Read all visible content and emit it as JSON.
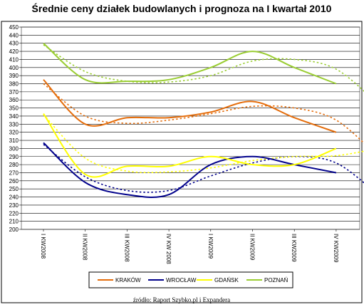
{
  "chart_data": {
    "type": "line",
    "title": "Średnie ceny działek budowlanych i prognoza na I kwartał 2010",
    "source": "źródło: Raport Szybko.pl i Expandera",
    "x": [
      "I KW2008",
      "II KW2008",
      "III KW2008",
      "IV KW 2008",
      "I KW2009",
      "II KW2009",
      "III KW2009",
      "IV KW2009"
    ],
    "ylim": [
      200,
      450
    ],
    "ytick_step": 10,
    "grid": true,
    "legend_position": "bottom",
    "series": [
      {
        "name": "KRAKÓW",
        "color": "#E46C0A",
        "values": [
          385,
          330,
          338,
          338,
          345,
          358,
          338,
          320
        ],
        "trend": [
          380,
          340,
          331,
          335,
          343,
          352,
          350,
          335,
          290
        ]
      },
      {
        "name": "WROCŁAW",
        "color": "#00008B",
        "values": [
          307,
          258,
          243,
          243,
          280,
          290,
          280,
          270
        ],
        "trend": [
          305,
          265,
          248,
          248,
          266,
          282,
          290,
          282,
          243
        ]
      },
      {
        "name": "GDAŃSK",
        "color": "#FFFF00",
        "values": [
          343,
          268,
          278,
          278,
          290,
          280,
          280,
          300
        ],
        "trend": [
          342,
          288,
          272,
          271,
          276,
          285,
          290,
          291,
          300
        ]
      },
      {
        "name": "POZNAŃ",
        "color": "#9ACD32",
        "values": [
          430,
          385,
          383,
          385,
          400,
          420,
          400,
          380
        ],
        "trend": [
          428,
          395,
          383,
          382,
          390,
          408,
          410,
          398,
          355
        ]
      }
    ]
  }
}
